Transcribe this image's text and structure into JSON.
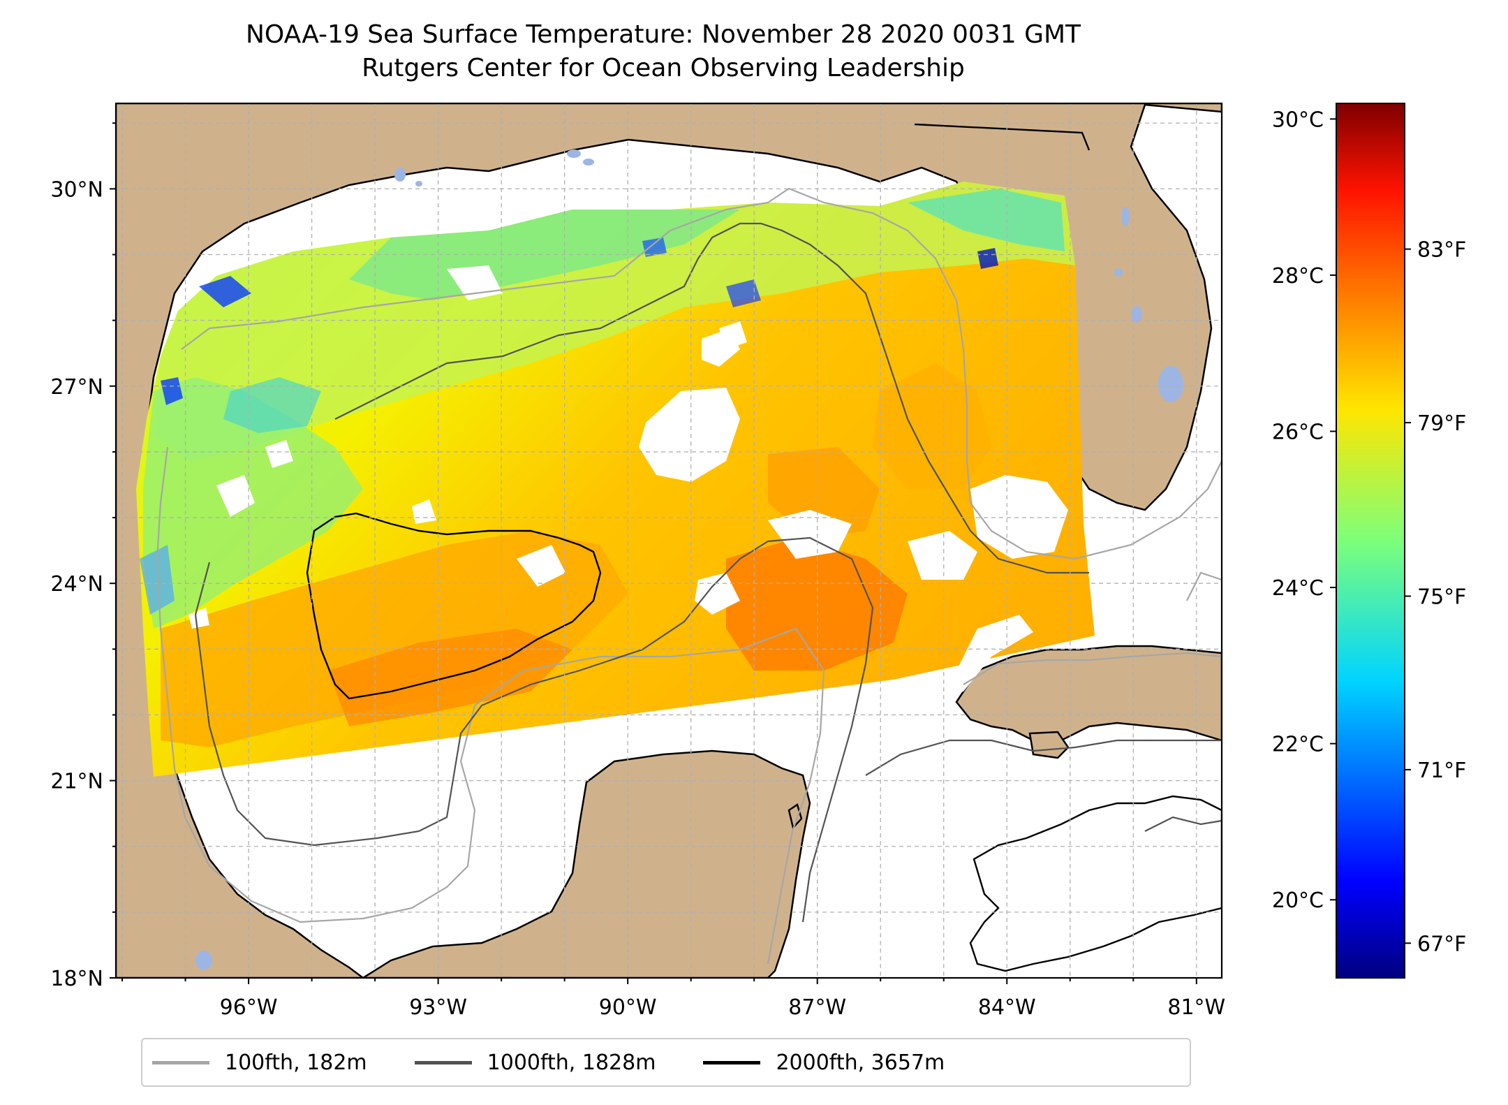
{
  "title": {
    "line1": "NOAA-19 Sea Surface Temperature: November 28 2020 0031 GMT",
    "line2": "Rutgers Center for Ocean Observing Leadership"
  },
  "map": {
    "lat_labels": [
      "30°N",
      "27°N",
      "24°N",
      "21°N",
      "18°N"
    ],
    "lon_labels": [
      "96°W",
      "93°W",
      "90°W",
      "87°W",
      "84°W",
      "81°W"
    ],
    "lat_range": [
      18,
      31.3
    ],
    "lon_range": [
      -98.1,
      -80.6
    ],
    "land_color": "#cfb28c",
    "lake_color": "#9db5e3",
    "grid_color": "#b0b0b0"
  },
  "colorbar": {
    "celsius_labels": [
      "30°C",
      "28°C",
      "26°C",
      "24°C",
      "22°C",
      "20°C"
    ],
    "fahrenheit_labels": [
      "83°F",
      "79°F",
      "75°F",
      "71°F",
      "67°F"
    ],
    "range_celsius": [
      19,
      30.2
    ],
    "colormap": [
      "#00007f",
      "#0000ff",
      "#007fff",
      "#00ffff",
      "#7fff7f",
      "#ffff00",
      "#ff7f00",
      "#ff0000",
      "#7f0000"
    ]
  },
  "legend": [
    {
      "label": "100fth, 182m",
      "color": "#a6a6a6"
    },
    {
      "label": "1000fth, 1828m",
      "color": "#525252"
    },
    {
      "label": "2000fth, 3657m",
      "color": "#000000"
    }
  ]
}
